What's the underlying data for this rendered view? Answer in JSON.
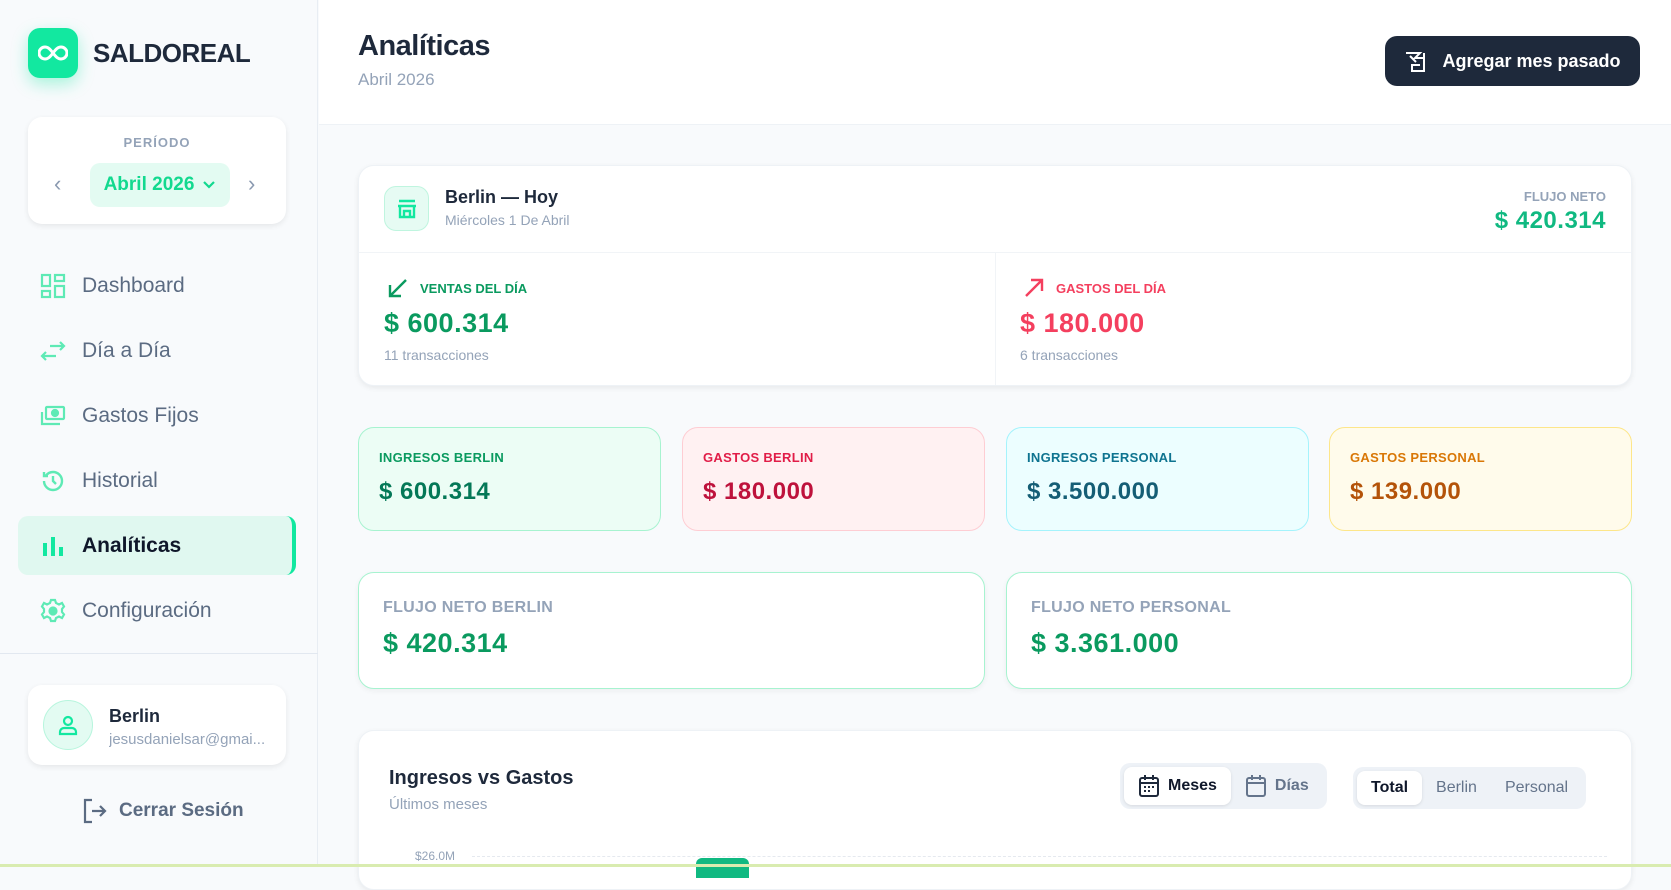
{
  "brand": {
    "name": "SALDOREAL",
    "accent": "#12e8a0"
  },
  "period": {
    "label": "PERÍODO",
    "value": "Abril 2026"
  },
  "nav": [
    {
      "label": "Dashboard",
      "icon": "dashboard-icon"
    },
    {
      "label": "Día a Día",
      "icon": "arrows-exchange-icon"
    },
    {
      "label": "Gastos Fijos",
      "icon": "cash-icon"
    },
    {
      "label": "Historial",
      "icon": "history-icon"
    },
    {
      "label": "Analíticas",
      "icon": "bar-chart-icon",
      "active": true
    },
    {
      "label": "Configuración",
      "icon": "gear-icon"
    }
  ],
  "user": {
    "name": "Berlin",
    "email": "jesusdanielsar@gmai..."
  },
  "logout": "Cerrar Sesión",
  "header": {
    "title": "Analíticas",
    "subtitle": "Abril 2026",
    "add_button": "Agregar mes pasado"
  },
  "today": {
    "title": "Berlin — Hoy",
    "date": "Miércoles 1 De Abril",
    "net_label": "FLUJO NETO",
    "net_value": "$ 420.314",
    "sales": {
      "label": "VENTAS DEL DÍA",
      "value": "$ 600.314",
      "count": "11 transacciones"
    },
    "expenses": {
      "label": "GASTOS DEL DÍA",
      "value": "$ 180.000",
      "count": "6 transacciones"
    }
  },
  "summary": [
    {
      "label": "INGRESOS BERLIN",
      "value": "$ 600.314"
    },
    {
      "label": "GASTOS BERLIN",
      "value": "$ 180.000"
    },
    {
      "label": "INGRESOS PERSONAL",
      "value": "$ 3.500.000"
    },
    {
      "label": "GASTOS PERSONAL",
      "value": "$ 139.000"
    }
  ],
  "net": [
    {
      "label": "FLUJO NETO BERLIN",
      "value": "$ 420.314"
    },
    {
      "label": "FLUJO NETO PERSONAL",
      "value": "$ 3.361.000"
    }
  ],
  "chart": {
    "title": "Ingresos vs Gastos",
    "subtitle": "Últimos meses",
    "view_options": [
      "Meses",
      "Días"
    ],
    "view_selected": "Meses",
    "scope_options": [
      "Total",
      "Berlin",
      "Personal"
    ],
    "scope_selected": "Total",
    "y_top_tick": "$26.0M",
    "bar_color": "#10b981"
  }
}
